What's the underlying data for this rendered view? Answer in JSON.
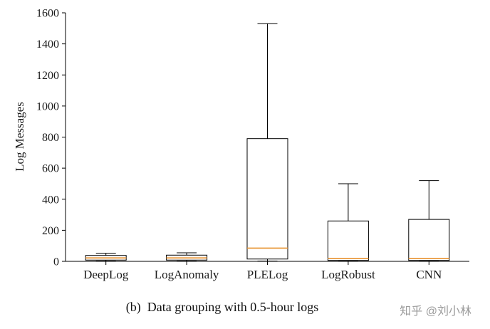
{
  "figure": {
    "caption": "(b)  Data grouping with 0.5-hour logs",
    "watermark": "知乎 @刘小林"
  },
  "chart_data": {
    "type": "boxplot",
    "title": "",
    "xlabel": "",
    "ylabel": "Log Messages",
    "ylim": [
      0,
      1600
    ],
    "yticks": [
      0,
      200,
      400,
      600,
      800,
      1000,
      1200,
      1400,
      1600
    ],
    "grid": false,
    "legend": false,
    "categories": [
      "DeepLog",
      "LogAnomaly",
      "PLELog",
      "LogRobust",
      "CNN"
    ],
    "series": [
      {
        "name": "DeepLog",
        "whisker_low": 2,
        "q1": 8,
        "median": 22,
        "q3": 38,
        "whisker_high": 52
      },
      {
        "name": "LogAnomaly",
        "whisker_low": 2,
        "q1": 8,
        "median": 22,
        "q3": 40,
        "whisker_high": 55
      },
      {
        "name": "PLELog",
        "whisker_low": 2,
        "q1": 15,
        "median": 85,
        "q3": 790,
        "whisker_high": 1530
      },
      {
        "name": "LogRobust",
        "whisker_low": 2,
        "q1": 6,
        "median": 18,
        "q3": 260,
        "whisker_high": 500
      },
      {
        "name": "CNN",
        "whisker_low": 2,
        "q1": 6,
        "median": 18,
        "q3": 270,
        "whisker_high": 520
      }
    ],
    "style": {
      "box_color": "#000000",
      "median_color": "#e8912d",
      "axis_color": "#000000"
    }
  }
}
